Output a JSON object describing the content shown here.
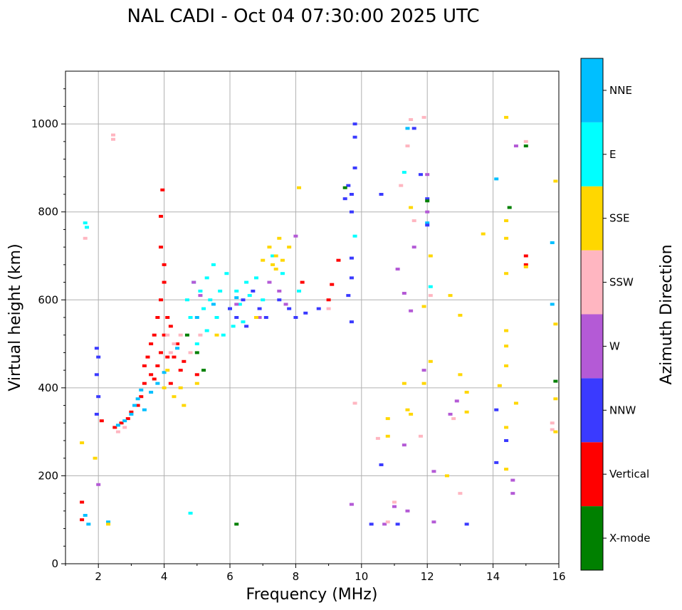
{
  "chart_data": {
    "type": "scatter",
    "title": "NAL CADI - Oct 04 07:30:00 2025 UTC",
    "xlabel": "Frequency (MHz)",
    "ylabel": "Virtual height (km)",
    "xlim": [
      1,
      16
    ],
    "ylim": [
      0,
      1120
    ],
    "xticks": [
      2,
      4,
      6,
      8,
      10,
      12,
      14,
      16
    ],
    "yticks": [
      0,
      200,
      400,
      600,
      800,
      1000
    ],
    "grid": true,
    "colorbar": {
      "label": "Azimuth Direction",
      "entries": [
        {
          "name": "X-mode",
          "color": "#008000"
        },
        {
          "name": "Vertical",
          "color": "#ff0000"
        },
        {
          "name": "NNW",
          "color": "#3a3aff"
        },
        {
          "name": "W",
          "color": "#b45ad6"
        },
        {
          "name": "SSW",
          "color": "#ffb6c1"
        },
        {
          "name": "SSE",
          "color": "#ffd700"
        },
        {
          "name": "E",
          "color": "#00ffff"
        },
        {
          "name": "NNE",
          "color": "#00bfff"
        }
      ]
    },
    "series": [
      {
        "name": "Vertical",
        "points": [
          [
            1.5,
            100
          ],
          [
            1.5,
            140
          ],
          [
            2.1,
            325
          ],
          [
            2.5,
            310
          ],
          [
            2.7,
            320
          ],
          [
            2.9,
            330
          ],
          [
            3.0,
            345
          ],
          [
            3.2,
            360
          ],
          [
            3.3,
            380
          ],
          [
            3.4,
            410
          ],
          [
            3.4,
            450
          ],
          [
            3.5,
            470
          ],
          [
            3.6,
            430
          ],
          [
            3.6,
            500
          ],
          [
            3.7,
            420
          ],
          [
            3.7,
            520
          ],
          [
            3.8,
            450
          ],
          [
            3.8,
            560
          ],
          [
            3.9,
            480
          ],
          [
            3.9,
            600
          ],
          [
            3.9,
            720
          ],
          [
            3.9,
            790
          ],
          [
            3.95,
            850
          ],
          [
            4.0,
            520
          ],
          [
            4.0,
            640
          ],
          [
            4.0,
            680
          ],
          [
            4.1,
            470
          ],
          [
            4.1,
            560
          ],
          [
            4.2,
            410
          ],
          [
            4.2,
            540
          ],
          [
            4.3,
            470
          ],
          [
            4.4,
            500
          ],
          [
            4.5,
            440
          ],
          [
            4.6,
            460
          ],
          [
            5.0,
            430
          ],
          [
            8.2,
            640
          ],
          [
            9.0,
            600
          ],
          [
            9.1,
            635
          ],
          [
            9.3,
            690
          ],
          [
            15.0,
            680
          ],
          [
            15.0,
            700
          ]
        ]
      },
      {
        "name": "NNE",
        "points": [
          [
            1.6,
            110
          ],
          [
            1.7,
            90
          ],
          [
            2.3,
            95
          ],
          [
            2.6,
            315
          ],
          [
            2.8,
            325
          ],
          [
            3.0,
            340
          ],
          [
            3.1,
            360
          ],
          [
            3.2,
            375
          ],
          [
            3.3,
            395
          ],
          [
            3.4,
            350
          ],
          [
            3.6,
            390
          ],
          [
            3.8,
            410
          ],
          [
            4.0,
            435
          ],
          [
            4.4,
            490
          ],
          [
            5.0,
            560
          ],
          [
            5.5,
            590
          ],
          [
            6.2,
            605
          ],
          [
            11.4,
            990
          ],
          [
            12.0,
            775
          ],
          [
            14.1,
            875
          ],
          [
            15.8,
            730
          ],
          [
            15.8,
            590
          ]
        ]
      },
      {
        "name": "E",
        "points": [
          [
            1.6,
            775
          ],
          [
            1.65,
            765
          ],
          [
            4.8,
            115
          ],
          [
            4.7,
            600
          ],
          [
            4.8,
            560
          ],
          [
            4.9,
            640
          ],
          [
            5.0,
            500
          ],
          [
            5.1,
            620
          ],
          [
            5.2,
            580
          ],
          [
            5.3,
            650
          ],
          [
            5.3,
            530
          ],
          [
            5.4,
            600
          ],
          [
            5.5,
            680
          ],
          [
            5.6,
            560
          ],
          [
            5.7,
            620
          ],
          [
            5.8,
            520
          ],
          [
            5.9,
            660
          ],
          [
            6.0,
            580
          ],
          [
            6.1,
            540
          ],
          [
            6.2,
            620
          ],
          [
            6.3,
            590
          ],
          [
            6.4,
            550
          ],
          [
            6.5,
            640
          ],
          [
            6.6,
            610
          ],
          [
            6.8,
            650
          ],
          [
            7.0,
            600
          ],
          [
            7.3,
            700
          ],
          [
            7.6,
            660
          ],
          [
            8.1,
            620
          ],
          [
            9.8,
            745
          ],
          [
            11.3,
            890
          ],
          [
            12.1,
            630
          ]
        ]
      },
      {
        "name": "NNW",
        "points": [
          [
            1.95,
            490
          ],
          [
            2.0,
            470
          ],
          [
            1.95,
            430
          ],
          [
            2.0,
            380
          ],
          [
            1.95,
            340
          ],
          [
            6.0,
            580
          ],
          [
            6.2,
            560
          ],
          [
            6.4,
            600
          ],
          [
            6.5,
            540
          ],
          [
            6.7,
            620
          ],
          [
            6.9,
            580
          ],
          [
            7.1,
            560
          ],
          [
            7.5,
            600
          ],
          [
            7.8,
            580
          ],
          [
            8.0,
            560
          ],
          [
            8.3,
            570
          ],
          [
            8.7,
            580
          ],
          [
            9.5,
            830
          ],
          [
            9.6,
            860
          ],
          [
            9.7,
            800
          ],
          [
            9.7,
            840
          ],
          [
            9.8,
            900
          ],
          [
            9.8,
            970
          ],
          [
            9.8,
            1000
          ],
          [
            9.6,
            610
          ],
          [
            9.7,
            550
          ],
          [
            9.7,
            650
          ],
          [
            9.7,
            695
          ],
          [
            10.3,
            90
          ],
          [
            10.6,
            840
          ],
          [
            10.6,
            225
          ],
          [
            11.1,
            90
          ],
          [
            11.6,
            990
          ],
          [
            11.8,
            885
          ],
          [
            12.0,
            830
          ],
          [
            12.0,
            770
          ],
          [
            13.2,
            90
          ],
          [
            14.1,
            350
          ],
          [
            14.1,
            230
          ],
          [
            14.4,
            280
          ]
        ]
      },
      {
        "name": "W",
        "points": [
          [
            2.0,
            180
          ],
          [
            4.9,
            640
          ],
          [
            5.1,
            610
          ],
          [
            6.2,
            590
          ],
          [
            6.9,
            560
          ],
          [
            7.2,
            640
          ],
          [
            7.5,
            620
          ],
          [
            7.7,
            590
          ],
          [
            8.0,
            745
          ],
          [
            9.7,
            135
          ],
          [
            10.7,
            90
          ],
          [
            11.0,
            130
          ],
          [
            11.1,
            670
          ],
          [
            11.3,
            615
          ],
          [
            11.3,
            270
          ],
          [
            11.4,
            120
          ],
          [
            11.5,
            575
          ],
          [
            11.6,
            720
          ],
          [
            11.9,
            440
          ],
          [
            12.0,
            885
          ],
          [
            12.0,
            800
          ],
          [
            12.2,
            210
          ],
          [
            12.2,
            95
          ],
          [
            12.7,
            340
          ],
          [
            12.9,
            370
          ],
          [
            14.6,
            190
          ],
          [
            14.6,
            160
          ],
          [
            14.7,
            950
          ]
        ]
      },
      {
        "name": "SSW",
        "points": [
          [
            1.6,
            740
          ],
          [
            2.45,
            975
          ],
          [
            2.45,
            965
          ],
          [
            2.6,
            300
          ],
          [
            2.8,
            310
          ],
          [
            4.1,
            520
          ],
          [
            4.2,
            480
          ],
          [
            4.3,
            500
          ],
          [
            4.5,
            520
          ],
          [
            4.8,
            480
          ],
          [
            5.1,
            520
          ],
          [
            9.0,
            580
          ],
          [
            9.8,
            365
          ],
          [
            10.5,
            285
          ],
          [
            10.8,
            95
          ],
          [
            11.0,
            140
          ],
          [
            11.2,
            860
          ],
          [
            11.4,
            950
          ],
          [
            11.5,
            1010
          ],
          [
            11.6,
            780
          ],
          [
            11.8,
            290
          ],
          [
            11.9,
            1015
          ],
          [
            12.1,
            610
          ],
          [
            12.8,
            330
          ],
          [
            13.0,
            160
          ],
          [
            15.0,
            960
          ],
          [
            15.8,
            320
          ],
          [
            15.8,
            305
          ]
        ]
      },
      {
        "name": "SSE",
        "points": [
          [
            1.5,
            275
          ],
          [
            1.9,
            240
          ],
          [
            2.3,
            90
          ],
          [
            4.0,
            400
          ],
          [
            4.1,
            440
          ],
          [
            4.3,
            380
          ],
          [
            4.5,
            400
          ],
          [
            4.6,
            360
          ],
          [
            5.0,
            410
          ],
          [
            5.6,
            520
          ],
          [
            6.8,
            560
          ],
          [
            7.0,
            690
          ],
          [
            7.2,
            720
          ],
          [
            7.3,
            680
          ],
          [
            7.4,
            670
          ],
          [
            7.4,
            700
          ],
          [
            7.5,
            740
          ],
          [
            7.6,
            690
          ],
          [
            7.8,
            720
          ],
          [
            8.1,
            855
          ],
          [
            10.8,
            330
          ],
          [
            10.8,
            290
          ],
          [
            11.3,
            410
          ],
          [
            11.4,
            350
          ],
          [
            11.5,
            340
          ],
          [
            11.5,
            810
          ],
          [
            11.9,
            410
          ],
          [
            11.9,
            585
          ],
          [
            12.1,
            700
          ],
          [
            12.1,
            460
          ],
          [
            12.6,
            200
          ],
          [
            12.7,
            610
          ],
          [
            13.0,
            565
          ],
          [
            13.0,
            430
          ],
          [
            13.2,
            390
          ],
          [
            13.2,
            345
          ],
          [
            13.7,
            750
          ],
          [
            14.2,
            405
          ],
          [
            14.4,
            1015
          ],
          [
            14.4,
            780
          ],
          [
            14.4,
            740
          ],
          [
            14.4,
            660
          ],
          [
            14.4,
            530
          ],
          [
            14.4,
            495
          ],
          [
            14.4,
            450
          ],
          [
            14.4,
            310
          ],
          [
            14.4,
            215
          ],
          [
            14.7,
            365
          ],
          [
            15.0,
            675
          ],
          [
            15.9,
            870
          ],
          [
            15.9,
            545
          ],
          [
            15.9,
            375
          ],
          [
            15.9,
            300
          ]
        ]
      },
      {
        "name": "X-mode",
        "points": [
          [
            4.7,
            520
          ],
          [
            5.0,
            480
          ],
          [
            5.2,
            440
          ],
          [
            6.2,
            90
          ],
          [
            9.5,
            855
          ],
          [
            12.0,
            825
          ],
          [
            14.5,
            810
          ],
          [
            15.0,
            950
          ],
          [
            15.9,
            415
          ]
        ]
      }
    ]
  }
}
